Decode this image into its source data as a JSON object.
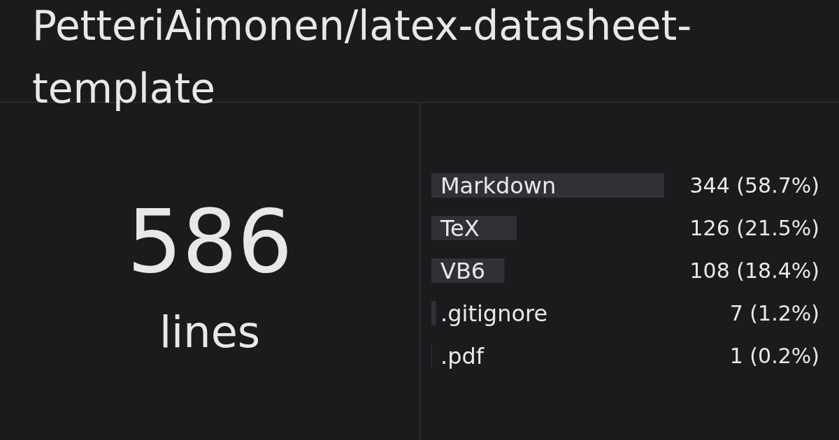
{
  "chart_data": [
    {
      "type": "other",
      "title": "PetteriAimonen/latex-datasheet-template",
      "annotations": [
        "586",
        "lines"
      ]
    },
    {
      "type": "bar",
      "orientation": "horizontal",
      "categories": [
        "Markdown",
        "TeX",
        "VB6",
        ".gitignore",
        ".pdf"
      ],
      "values": [
        344,
        126,
        108,
        7,
        1
      ],
      "color": "#2f3135",
      "value_labels": [
        "344 (58.7%)",
        "126 (21.5%)",
        "108 (18.4%)",
        "7 (1.2%)",
        "1 (0.2%)"
      ]
    }
  ]
}
